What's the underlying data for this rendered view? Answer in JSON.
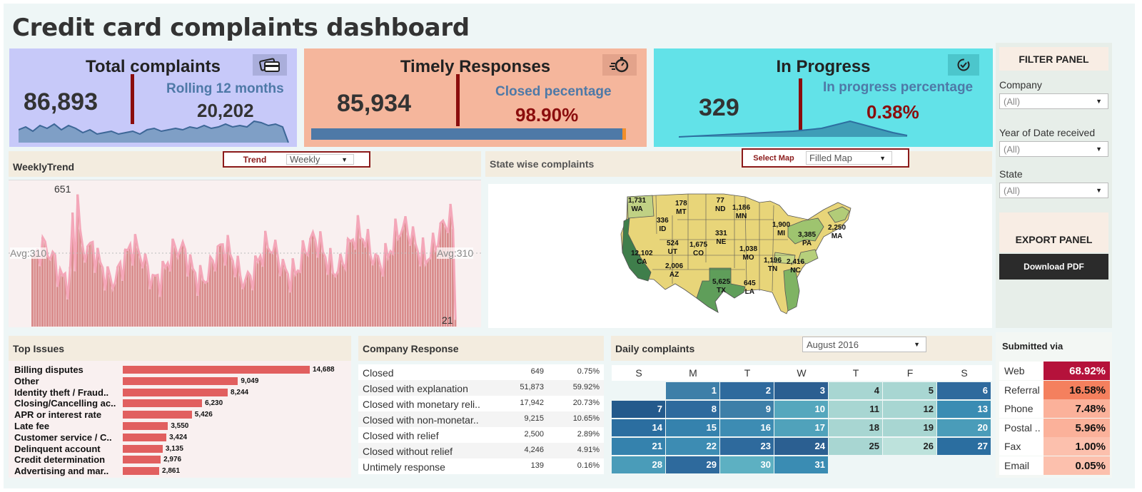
{
  "title": "Credit card complaints dashboard",
  "kpis": {
    "total": {
      "title": "Total complaints",
      "value": "86,893",
      "sub_label": "Rolling 12 months",
      "sub_value": "20,202",
      "icon": "credit-card-icon",
      "bg": "#c7c9f9"
    },
    "timely": {
      "title": "Timely Responses",
      "value": "85,934",
      "sub_label": "Closed pecentage",
      "sub_value": "98.90%",
      "icon": "stopwatch-icon",
      "bg": "#f5b69c",
      "progress": 0.989
    },
    "progress": {
      "title": "In Progress",
      "value": "329",
      "sub_label": "In progress percentage",
      "sub_value": "0.38%",
      "icon": "check-circle-icon",
      "bg": "#62e2e8"
    }
  },
  "weekly": {
    "header": "WeeklyTrend",
    "trend_label": "Trend",
    "trend_value": "Weekly",
    "max_label": "651",
    "min_label": "21",
    "avg_left": "Avg:310",
    "avg_right": "Avg:310"
  },
  "map": {
    "header": "State wise complaints",
    "select_label": "Select Map",
    "select_value": "Filled Map",
    "states": [
      {
        "abbr": "WA",
        "value": "1,731"
      },
      {
        "abbr": "MT",
        "value": "178"
      },
      {
        "abbr": "ND",
        "value": "77"
      },
      {
        "abbr": "MN",
        "value": "1,186"
      },
      {
        "abbr": "ID",
        "value": "336"
      },
      {
        "abbr": "MI",
        "value": "1,900"
      },
      {
        "abbr": "MA",
        "value": "2,250"
      },
      {
        "abbr": "PA",
        "value": "3,385"
      },
      {
        "abbr": "NE",
        "value": "331"
      },
      {
        "abbr": "UT",
        "value": "524"
      },
      {
        "abbr": "CO",
        "value": "1,675"
      },
      {
        "abbr": "CA",
        "value": "12,102"
      },
      {
        "abbr": "MO",
        "value": "1,038"
      },
      {
        "abbr": "NC",
        "value": "2,416"
      },
      {
        "abbr": "TN",
        "value": "1,196"
      },
      {
        "abbr": "AZ",
        "value": "2,006"
      },
      {
        "abbr": "TX",
        "value": "5,625"
      },
      {
        "abbr": "LA",
        "value": "645"
      }
    ]
  },
  "filter": {
    "header": "FILTER PANEL",
    "fields": [
      {
        "label": "Company",
        "value": "(All)"
      },
      {
        "label": "Year of Date received",
        "value": "(All)"
      },
      {
        "label": "State",
        "value": "(All)"
      }
    ]
  },
  "export": {
    "header": "EXPORT PANEL",
    "button": "Download PDF"
  },
  "top_issues": {
    "header": "Top Issues",
    "items": [
      {
        "label": "Billing disputes",
        "value": 14688,
        "text": "14,688"
      },
      {
        "label": "Other",
        "value": 9049,
        "text": "9,049"
      },
      {
        "label": "Identity theft / Fraud..",
        "value": 8244,
        "text": "8,244"
      },
      {
        "label": "Closing/Cancelling ac..",
        "value": 6230,
        "text": "6,230"
      },
      {
        "label": "APR or interest rate",
        "value": 5426,
        "text": "5,426"
      },
      {
        "label": "Late fee",
        "value": 3550,
        "text": "3,550"
      },
      {
        "label": "Customer service / C..",
        "value": 3424,
        "text": "3,424"
      },
      {
        "label": "Delinquent account",
        "value": 3135,
        "text": "3,135"
      },
      {
        "label": "Credit determination",
        "value": 2976,
        "text": "2,976"
      },
      {
        "label": "Advertising and mar..",
        "value": 2861,
        "text": "2,861"
      }
    ]
  },
  "company_response": {
    "header": "Company Response",
    "rows": [
      {
        "label": "Closed",
        "count": "649",
        "pct": "0.75%"
      },
      {
        "label": "Closed with explanation",
        "count": "51,873",
        "pct": "59.92%"
      },
      {
        "label": "Closed with monetary reli..",
        "count": "17,942",
        "pct": "20.73%"
      },
      {
        "label": "Closed with non-monetar..",
        "count": "9,215",
        "pct": "10.65%"
      },
      {
        "label": "Closed with relief",
        "count": "2,500",
        "pct": "2.89%"
      },
      {
        "label": "Closed without relief",
        "count": "4,246",
        "pct": "4.91%"
      },
      {
        "label": "Untimely response",
        "count": "139",
        "pct": "0.16%"
      }
    ]
  },
  "daily": {
    "header": "Daily complaints",
    "month": "August 2016",
    "weekdays": [
      "S",
      "M",
      "T",
      "W",
      "T",
      "F",
      "S"
    ],
    "days": [
      "1",
      "2",
      "3",
      "4",
      "5",
      "6",
      "7",
      "8",
      "9",
      "10",
      "11",
      "12",
      "13",
      "14",
      "15",
      "16",
      "17",
      "18",
      "19",
      "20",
      "21",
      "22",
      "23",
      "24",
      "25",
      "26",
      "27",
      "28",
      "29",
      "30",
      "31"
    ]
  },
  "submitted": {
    "header": "Submitted via",
    "rows": [
      {
        "label": "Web",
        "pct": "68.92%",
        "color": "#b5123b"
      },
      {
        "label": "Referral",
        "pct": "16.58%",
        "color": "#f4805e"
      },
      {
        "label": "Phone",
        "pct": "7.48%",
        "color": "#fbb19a"
      },
      {
        "label": "Postal ..",
        "pct": "5.96%",
        "color": "#fbb19a"
      },
      {
        "label": "Fax",
        "pct": "1.00%",
        "color": "#fcc0ad"
      },
      {
        "label": "Email",
        "pct": "0.05%",
        "color": "#fcc0ad"
      }
    ]
  }
}
